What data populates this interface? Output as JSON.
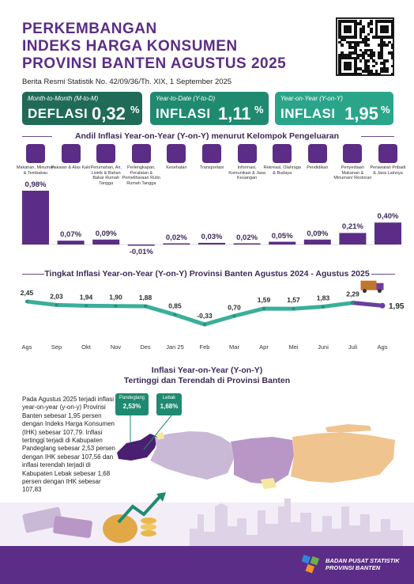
{
  "header": {
    "title_lines": [
      "PERKEMBANGAN",
      "INDEKS HARGA KONSUMEN",
      "PROVINSI BANTEN AGUSTUS 2025"
    ],
    "subtitle": "Berita Resmi Statistik No. 42/09/36/Th. XIX, 1 September 2025"
  },
  "summary": {
    "mtm": {
      "label": "Month-to-Month (M-to-M)",
      "word": "DEFLASI",
      "value": "0,32",
      "unit": "%"
    },
    "ytd": {
      "label": "Year-to-Date (Y-to-D)",
      "word": "INFLASI",
      "value": "1,11",
      "unit": "%"
    },
    "yoy": {
      "label": "Year-on-Year (Y-on-Y)",
      "word": "INFLASI",
      "value": "1,95",
      "unit": "%"
    }
  },
  "colors": {
    "purple": "#5b2d86",
    "dark_green": "#1f6b57",
    "teal": "#2aa58a",
    "line_teal": "#3aaf9a",
    "bar": "#5b2d86"
  },
  "section1": {
    "title": "Andil Inflasi Year-on-Year (Y-on-Y) menurut Kelompok Pengeluaran"
  },
  "section2": {
    "title": "Tingkat Inflasi Year-on-Year (Y-on-Y) Provinsi Banten Agustus 2024 - Agustus 2025"
  },
  "section3": {
    "title_line1": "Inflasi Year-on-Year  (Y-on-Y)",
    "title_line2": "Tertinggi dan Terendah di Provinsi Banten"
  },
  "paragraph": "Pada Agustus 2025 terjadi inflasi year-on-year (y-on-y) Provinsi Banten sebesar 1,95 persen dengan Indeks Harga Konsumen (IHK) sebesar 107,79. Inflasi tertinggi terjadi di Kabupaten Pandeglang sebesar 2,53 persen dengan IHK sebesar 107,56 dan inflasi terendah terjadi di Kabupaten Lebak sebesar 1,68 persen dengan IHK sebesar 107,83",
  "callouts": {
    "high": {
      "name": "Pandeglang",
      "value": "2,53%"
    },
    "low": {
      "name": "Lebak",
      "value": "1,68%"
    }
  },
  "footer": {
    "org_line1": "BADAN PUSAT STATISTIK",
    "org_line2": "PROVINSI BANTEN"
  },
  "chart_data": [
    {
      "type": "bar",
      "title": "Andil Inflasi Year-on-Year (Y-on-Y) menurut Kelompok Pengeluaran",
      "categories": [
        "Makanan, Minuman & Tembakau",
        "Pakaian & Alas Kaki",
        "Perumahan, Air, Listrik & Bahan Bakar Rumah Tangga",
        "Perlengkapan, Peralatan & Pemeliharaan Rutin Rumah Tangga",
        "Kesehatan",
        "Transportasi",
        "Informasi, Komunikasi & Jasa Keuangan",
        "Rekreasi, Olahraga & Budaya",
        "Pendidikan",
        "Penyediaan Makanan & Minuman/ Restoran",
        "Perawatan Pribadi & Jasa Lainnya"
      ],
      "values": [
        0.98,
        0.07,
        0.09,
        -0.01,
        0.02,
        0.03,
        0.02,
        0.05,
        0.09,
        0.21,
        0.4
      ],
      "value_labels": [
        "0,98%",
        "0,07%",
        "0,09%",
        "-0,01%",
        "0,02%",
        "0,03%",
        "0,02%",
        "0,05%",
        "0,09%",
        "0,21%",
        "0,40%"
      ]
    },
    {
      "type": "line",
      "title": "Tingkat Inflasi Year-on-Year (Y-on-Y) Provinsi Banten Agustus 2024 - Agustus 2025",
      "categories": [
        "Ags",
        "Sep",
        "Okt",
        "Nov",
        "Des",
        "Jan 25",
        "Feb",
        "Mar",
        "Apr",
        "Mei",
        "Juni",
        "Juli",
        "Ags"
      ],
      "values": [
        2.45,
        2.03,
        1.94,
        1.9,
        1.88,
        0.85,
        -0.33,
        0.7,
        1.59,
        1.57,
        1.83,
        2.29,
        1.95
      ],
      "value_labels": [
        "2,45",
        "2,03",
        "1,94",
        "1,90",
        "1,88",
        "0,85",
        "-0,33",
        "0,70",
        "1,59",
        "1,57",
        "1,83",
        "2,29",
        "1,95"
      ]
    }
  ]
}
